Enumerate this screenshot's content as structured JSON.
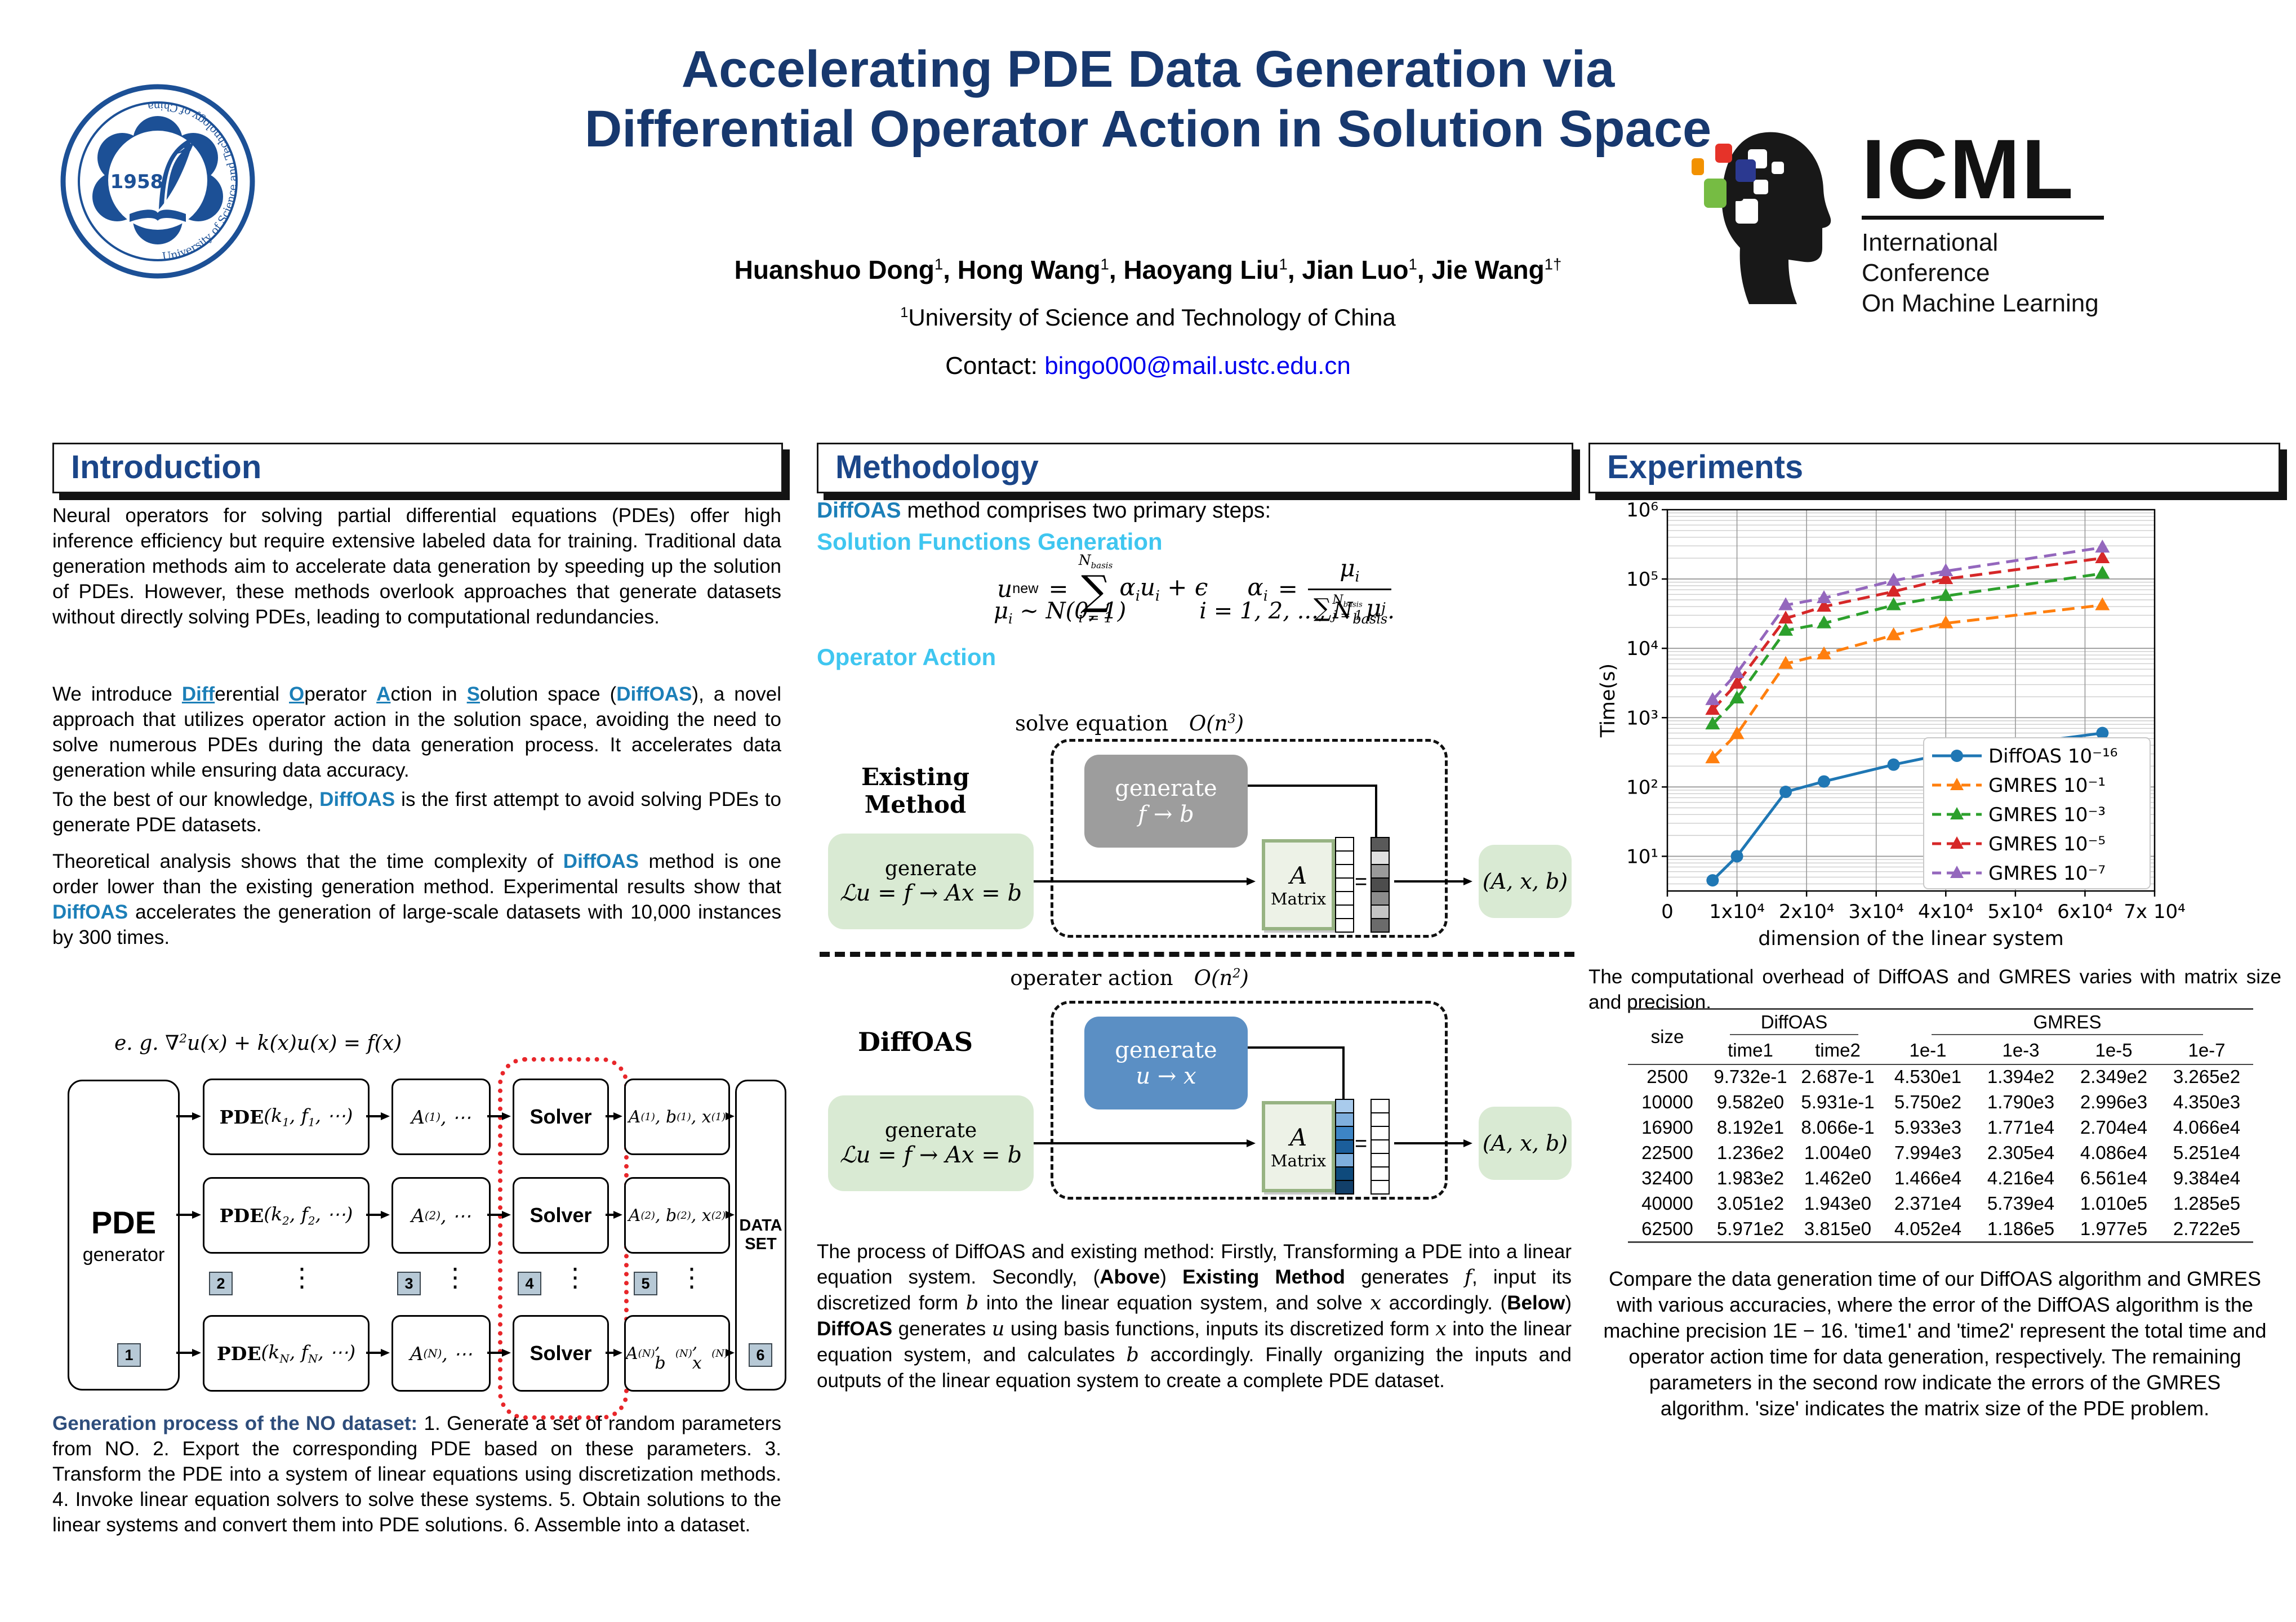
{
  "header": {
    "title_line1": "Accelerating PDE Data Generation via",
    "title_line2": "Differential Operator Action in Solution Space",
    "authors": [
      {
        "name": "Huanshuo Dong",
        "sup": "1",
        "sep": ", "
      },
      {
        "name": "Hong Wang",
        "sup": "1",
        "sep": ", "
      },
      {
        "name": "Haoyang Liu",
        "sup": "1",
        "sep": ", "
      },
      {
        "name": "Jian Luo",
        "sup": "1",
        "sep": ", "
      },
      {
        "name": "Jie Wang",
        "sup": "1†",
        "sep": ""
      }
    ],
    "affiliation_sup": "1",
    "affiliation": "University of Science and Technology of China",
    "contact_label": "Contact: ",
    "contact_email": "bingo000@mail.ustc.edu.cn",
    "icml": {
      "name": "ICML",
      "line1": "International Conference",
      "line2": "On Machine Learning"
    },
    "ustc": {
      "year": "1958",
      "ring_text": "University of Science and Technology of China"
    }
  },
  "intro": {
    "heading": "Introduction",
    "p1": [
      {
        "t": "Neural operators for solving partial differential equations (PDEs) offer high inference efficiency but require extensive labeled data for training.  Traditional data generation methods aim to accelerate data generation by speeding up the solution of PDEs. However, these methods overlook approaches that generate datasets without directly solving PDEs, leading to computational redundancies.",
        "s": "n"
      }
    ],
    "p2": [
      {
        "t": "We introduce ",
        "s": "n"
      },
      {
        "t": "Diff",
        "s": "ub"
      },
      {
        "t": "erential ",
        "s": "n"
      },
      {
        "t": "O",
        "s": "ub"
      },
      {
        "t": "perator ",
        "s": "n"
      },
      {
        "t": "A",
        "s": "ub"
      },
      {
        "t": "ction in ",
        "s": "n"
      },
      {
        "t": "S",
        "s": "ub"
      },
      {
        "t": "olution space (",
        "s": "n"
      },
      {
        "t": "DiffOAS",
        "s": "bb"
      },
      {
        "t": "), a novel approach that utilizes operator action in the solution space, avoiding the need to solve numerous PDEs during the data generation process.  It accelerates data generation while ensuring data accuracy.",
        "s": "n"
      }
    ],
    "p3": [
      {
        "t": "To the best of our knowledge, ",
        "s": "n"
      },
      {
        "t": "DiffOAS",
        "s": "bb"
      },
      {
        "t": " is the first attempt to avoid solving PDEs to generate PDE datasets.",
        "s": "n"
      }
    ],
    "p4": [
      {
        "t": "Theoretical analysis shows that the time complexity of ",
        "s": "n"
      },
      {
        "t": "DiffOAS",
        "s": "bb"
      },
      {
        "t": " method is one order lower than the existing generation method.  Experimental results show that ",
        "s": "n"
      },
      {
        "t": "DiffOAS",
        "s": "bb"
      },
      {
        "t": " accelerates the generation of large-scale datasets with 10,000 instances by 300 times.",
        "s": "n"
      }
    ],
    "diagram": {
      "eq": "e. g. ∇^{2}u(x) + k(x)u(x) = f(x)",
      "gen_title": "PDE",
      "gen_sub": "generator",
      "rows": [
        {
          "prefix": "PDE",
          "args": "(k_{1}, f_{1}, ⋯)",
          "a": "A^{(1)}, ⋯",
          "solver": "Solver",
          "out": "A^{(1)}, b^{(1)}, x^{(1)}"
        },
        {
          "prefix": "PDE",
          "args": "(k_{2}, f_{2}, ⋯)",
          "a": "A^{(2)}, ⋯",
          "solver": "Solver",
          "out": "A^{(2)}, b^{(2)}, x^{(2)}"
        },
        {
          "prefix": "PDE",
          "args": "(k_{N}, f_{N}, ⋯)",
          "a": "A^{(N)}, ⋯",
          "solver": "Solver",
          "out": "A^{(N)}, b^{(N)}, x^{(N)}"
        }
      ],
      "badges": [
        "1",
        "2",
        "3",
        "4",
        "5",
        "6"
      ],
      "dots": "⋮",
      "dataset_line1": "DATA",
      "dataset_line2": "SET"
    },
    "caption": [
      {
        "t": "Generation process of the NO dataset:",
        "s": "nb"
      },
      {
        "t": " 1.  Generate a set of random parameters from NO. 2.  Export the corresponding PDE based on these parameters. 3. Transform the PDE into a system of linear equations using discretization methods.  4.  Invoke linear equation solvers to solve these systems.  5.  Obtain solutions to the linear systems and convert them into PDE solutions. 6. Assemble into a dataset.",
        "s": "n"
      }
    ]
  },
  "method": {
    "heading": "Methodology",
    "intro": [
      {
        "t": "DiffOAS",
        "s": "bb"
      },
      {
        "t": " method comprises two primary steps:",
        "s": "n"
      }
    ],
    "sub1": "Solution Functions Generation",
    "sub2": "Operator Action",
    "eq": {
      "u": "u",
      "usub": "new",
      "eq1": "=",
      "ntop": "N",
      "ntopsub": "basis",
      "sum": "∑",
      "ibot": "i = 1",
      "a1": "α",
      "a1s": "i",
      "u2": "u",
      "u2s": "i",
      "plus": " + ϵ",
      "al": "α",
      "als": "i",
      "aeq": "=",
      "mu1": "μ",
      "mu1s": "i",
      "dsum": "∑",
      "dtop": "N",
      "dtopsub": "basis",
      "dbot": "j = 1",
      "mu2": "μ",
      "mu2s": "j",
      "l2a": "μ",
      "l2as": "i",
      "l2b": " ∼ N(0, 1)",
      "l2c": "i = 1, 2, ..., N",
      "l2csub": "basis",
      "l2d": "."
    },
    "labels": {
      "solve_eq": "solve equation",
      "o3": "O(n^{3})",
      "existing": "Existing Method",
      "diffoas": "DiffOAS",
      "generate": "generate",
      "fb": "f → b",
      "ux": "u → x",
      "lu": "ℒu = f → Ax = b",
      "a": "A",
      "matrix": "Matrix",
      "xlab": "x",
      "blab": "b",
      "eqsign": "=",
      "axb": "(A, x, b)",
      "op_action": "operater action",
      "o2": "O(n^{2})"
    },
    "caption": [
      {
        "t": "The process of DiffOAS and existing method: Firstly, Transforming a PDE into a linear equation system.  Secondly, (",
        "s": "n"
      },
      {
        "t": "Above",
        "s": "b"
      },
      {
        "t": ") ",
        "s": "n"
      },
      {
        "t": "Existing Method",
        "s": "b"
      },
      {
        "t": " generates ",
        "s": "n"
      },
      {
        "t": "f",
        "s": "i"
      },
      {
        "t": ", input its discretized form ",
        "s": "n"
      },
      {
        "t": "b",
        "s": "i"
      },
      {
        "t": " into the linear equation system, and solve ",
        "s": "n"
      },
      {
        "t": "x",
        "s": "i"
      },
      {
        "t": " accordingly.  (",
        "s": "n"
      },
      {
        "t": "Below",
        "s": "b"
      },
      {
        "t": ") ",
        "s": "n"
      },
      {
        "t": "DiffOAS",
        "s": "b"
      },
      {
        "t": " generates ",
        "s": "n"
      },
      {
        "t": "u",
        "s": "i"
      },
      {
        "t": " using basis functions, inputs its discretized form ",
        "s": "n"
      },
      {
        "t": "x",
        "s": "i"
      },
      {
        "t": " into the linear equation system, and calculates ",
        "s": "n"
      },
      {
        "t": "b",
        "s": "i"
      },
      {
        "t": " accordingly.  Finally organizing the inputs and outputs of the linear equation system to create a complete PDE dataset.",
        "s": "n"
      }
    ]
  },
  "experiments": {
    "heading": "Experiments",
    "caption1": "The computational overhead of DiffOAS and GMRES varies with matrix size and precision.",
    "table": {
      "col_size": "size",
      "group1": "DiffOAS",
      "group2": "GMRES",
      "sub": [
        "time1",
        "time2",
        "1e-1",
        "1e-3",
        "1e-5",
        "1e-7"
      ],
      "rows": [
        [
          "2500",
          "9.732e-1",
          "2.687e-1",
          "4.530e1",
          "1.394e2",
          "2.349e2",
          "3.265e2"
        ],
        [
          "10000",
          "9.582e0",
          "5.931e-1",
          "5.750e2",
          "1.790e3",
          "2.996e3",
          "4.350e3"
        ],
        [
          "16900",
          "8.192e1",
          "8.066e-1",
          "5.933e3",
          "1.771e4",
          "2.704e4",
          "4.066e4"
        ],
        [
          "22500",
          "1.236e2",
          "1.004e0",
          "7.994e3",
          "2.305e4",
          "4.086e4",
          "5.251e4"
        ],
        [
          "32400",
          "1.983e2",
          "1.462e0",
          "1.466e4",
          "4.216e4",
          "6.561e4",
          "9.384e4"
        ],
        [
          "40000",
          "3.051e2",
          "1.943e0",
          "2.371e4",
          "5.739e4",
          "1.010e5",
          "1.285e5"
        ],
        [
          "62500",
          "5.971e2",
          "3.815e0",
          "4.052e4",
          "1.186e5",
          "1.977e5",
          "2.722e5"
        ]
      ]
    },
    "caption2": "Compare the data generation time of our DiffOAS algorithm and GMRES with various accuracies, where the error of the DiffOAS algorithm is the machine precision 1E − 16. 'time1' and 'time2' represent the total time and operator action time for data generation, respectively. The remaining parameters in the second row indicate the errors of the GMRES algorithm. 'size' indicates the matrix size of the PDE problem."
  },
  "chart_data": {
    "type": "line",
    "title": "",
    "xlabel": "dimension of the linear system",
    "ylabel": "Time(s)",
    "xlim": [
      0,
      70000
    ],
    "ylim": [
      3.16,
      1000000
    ],
    "ylog": true,
    "grid": true,
    "legend_position": "lower right",
    "x_ticks": [
      "0",
      "1x10⁴",
      "2x10⁴",
      "3x10⁴",
      "4x10⁴",
      "5x10⁴",
      "6x10⁴",
      "7x 10⁴"
    ],
    "y_ticks": [
      "10¹",
      "10²",
      "10³",
      "10⁴",
      "10⁵",
      "10⁶"
    ],
    "x": [
      6500,
      10000,
      17000,
      22500,
      32500,
      40000,
      62500
    ],
    "series": [
      {
        "name": "DiffOAS 10⁻¹⁶",
        "color": "#1f77b4",
        "marker": "circle",
        "dash": "solid",
        "values": [
          4.5,
          10,
          85,
          120,
          210,
          300,
          600
        ]
      },
      {
        "name": "GMRES   10⁻¹",
        "color": "#ff7f0e",
        "marker": "triangle",
        "dash": "dashed",
        "values": [
          260,
          580,
          6000,
          8200,
          15500,
          23000,
          42000
        ]
      },
      {
        "name": "GMRES   10⁻³",
        "color": "#2ca02c",
        "marker": "triangle",
        "dash": "dashed",
        "values": [
          800,
          1900,
          18000,
          23000,
          42000,
          57000,
          120000
        ]
      },
      {
        "name": "GMRES   10⁻⁵",
        "color": "#d62728",
        "marker": "triangle",
        "dash": "dashed",
        "values": [
          1300,
          3100,
          27000,
          40000,
          66000,
          100000,
          200000
        ]
      },
      {
        "name": "GMRES   10⁻⁷",
        "color": "#9467bd",
        "marker": "triangle",
        "dash": "dashed",
        "values": [
          1800,
          4400,
          42000,
          53000,
          95000,
          130000,
          285000
        ]
      }
    ]
  }
}
